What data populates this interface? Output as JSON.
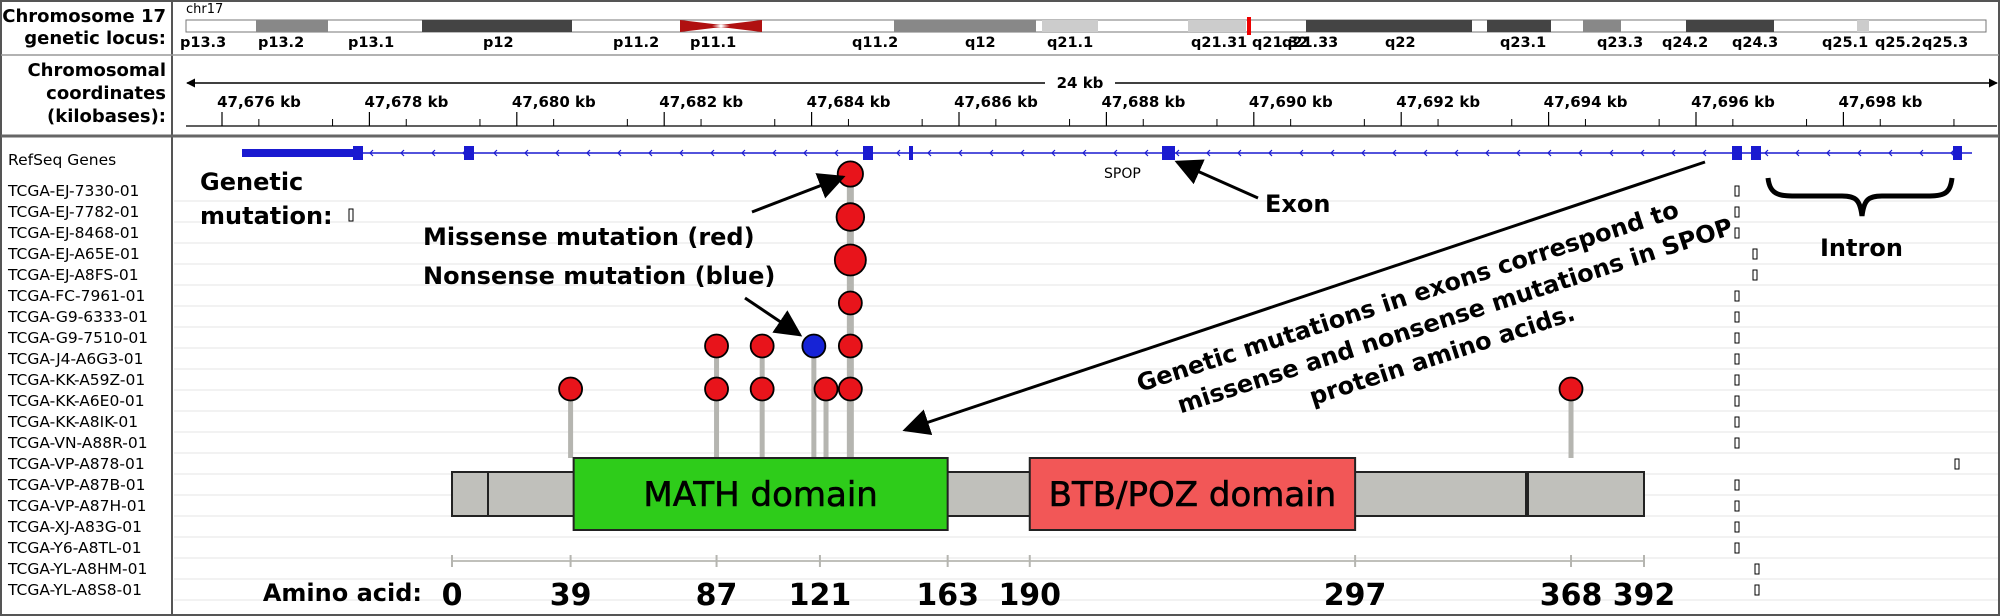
{
  "header": {
    "locus_label": [
      "Chromosome 17",
      "genetic locus:"
    ],
    "coord_label": [
      "Chromosomal",
      "coordinates",
      "(kilobases):"
    ],
    "chrom_name": "chr17",
    "span_label": "24 kb"
  },
  "ideogram_bands": [
    "p13.3",
    "p13.2",
    "p13.1",
    "p12",
    "p11.2",
    "p11.1",
    "q11.2",
    "q12",
    "q21.1",
    "q21.31",
    "q21.32",
    "q21.33",
    "q22",
    "q23.1",
    "q23.3",
    "q24.2",
    "q24.3",
    "q25.1",
    "q25.2",
    "q25.3"
  ],
  "coordinates": [
    "47,676 kb",
    "47,678 kb",
    "47,680 kb",
    "47,682 kb",
    "47,684 kb",
    "47,686 kb",
    "47,688 kb",
    "47,690 kb",
    "47,692 kb",
    "47,694 kb",
    "47,696 kb",
    "47,698 kb"
  ],
  "tracks": {
    "refseq_label": "RefSeq Genes",
    "gene_name": "SPOP",
    "samples": [
      "TCGA-EJ-7330-01",
      "TCGA-EJ-7782-01",
      "TCGA-EJ-8468-01",
      "TCGA-EJ-A65E-01",
      "TCGA-EJ-A8FS-01",
      "TCGA-FC-7961-01",
      "TCGA-G9-6333-01",
      "TCGA-G9-7510-01",
      "TCGA-J4-A6G3-01",
      "TCGA-KK-A59Z-01",
      "TCGA-KK-A6E0-01",
      "TCGA-KK-A8IK-01",
      "TCGA-VN-A88R-01",
      "TCGA-VP-A878-01",
      "TCGA-VP-A87B-01",
      "TCGA-VP-A87H-01",
      "TCGA-XJ-A83G-01",
      "TCGA-Y6-A8TL-01",
      "TCGA-YL-A8HM-01",
      "TCGA-YL-A8S8-01"
    ]
  },
  "annotations": {
    "genetic_mutation": [
      "Genetic",
      "mutation:"
    ],
    "missense": "Missense mutation (red)",
    "nonsense": "Nonsense mutation (blue)",
    "exon": "Exon",
    "intron": "Intron",
    "statement": [
      "Genetic mutations in exons correspond to",
      "missense and nonsense mutations in SPOP",
      "protein amino acids."
    ]
  },
  "protein": {
    "length": 392,
    "domains": [
      {
        "name": "MATH domain",
        "start": 40,
        "end": 163,
        "color": "#2ecc1a"
      },
      {
        "name": "BTB/POZ domain",
        "start": 190,
        "end": 297,
        "color": "#f25757"
      }
    ],
    "axis_label": "Amino acid:",
    "ticks": [
      0,
      39,
      87,
      121,
      163,
      190,
      297,
      368,
      392
    ],
    "tick_labels": [
      "0",
      "39",
      "87",
      "121",
      "163",
      "190",
      "297",
      "368",
      "392"
    ]
  },
  "mutations": [
    {
      "aa": 39,
      "type": "missense",
      "level": 1,
      "size": 1
    },
    {
      "aa": 87,
      "type": "missense",
      "level": 1,
      "size": 1
    },
    {
      "aa": 87,
      "type": "missense",
      "level": 2,
      "size": 1
    },
    {
      "aa": 102,
      "type": "missense",
      "level": 1,
      "size": 1
    },
    {
      "aa": 102,
      "type": "missense",
      "level": 2,
      "size": 1
    },
    {
      "aa": 119,
      "type": "nonsense",
      "level": 2,
      "size": 1
    },
    {
      "aa": 123,
      "type": "missense",
      "level": 1,
      "size": 1
    },
    {
      "aa": 131,
      "type": "missense",
      "level": 1,
      "size": 1
    },
    {
      "aa": 131,
      "type": "missense",
      "level": 2,
      "size": 1
    },
    {
      "aa": 131,
      "type": "missense",
      "level": 3,
      "size": 1
    },
    {
      "aa": 131,
      "type": "missense",
      "level": 4,
      "size": 1.35
    },
    {
      "aa": 131,
      "type": "missense",
      "level": 5,
      "size": 1.2
    },
    {
      "aa": 131,
      "type": "missense",
      "level": 6,
      "size": 1.1
    },
    {
      "aa": 368,
      "type": "missense",
      "level": 1,
      "size": 1
    }
  ],
  "colors": {
    "missense": "#e8141b",
    "nonsense": "#1623d6",
    "gene": "#1a1ad0",
    "stick": "#b5b5b0",
    "protein_body": "#c0c0bb",
    "centromere": "#b01010"
  }
}
